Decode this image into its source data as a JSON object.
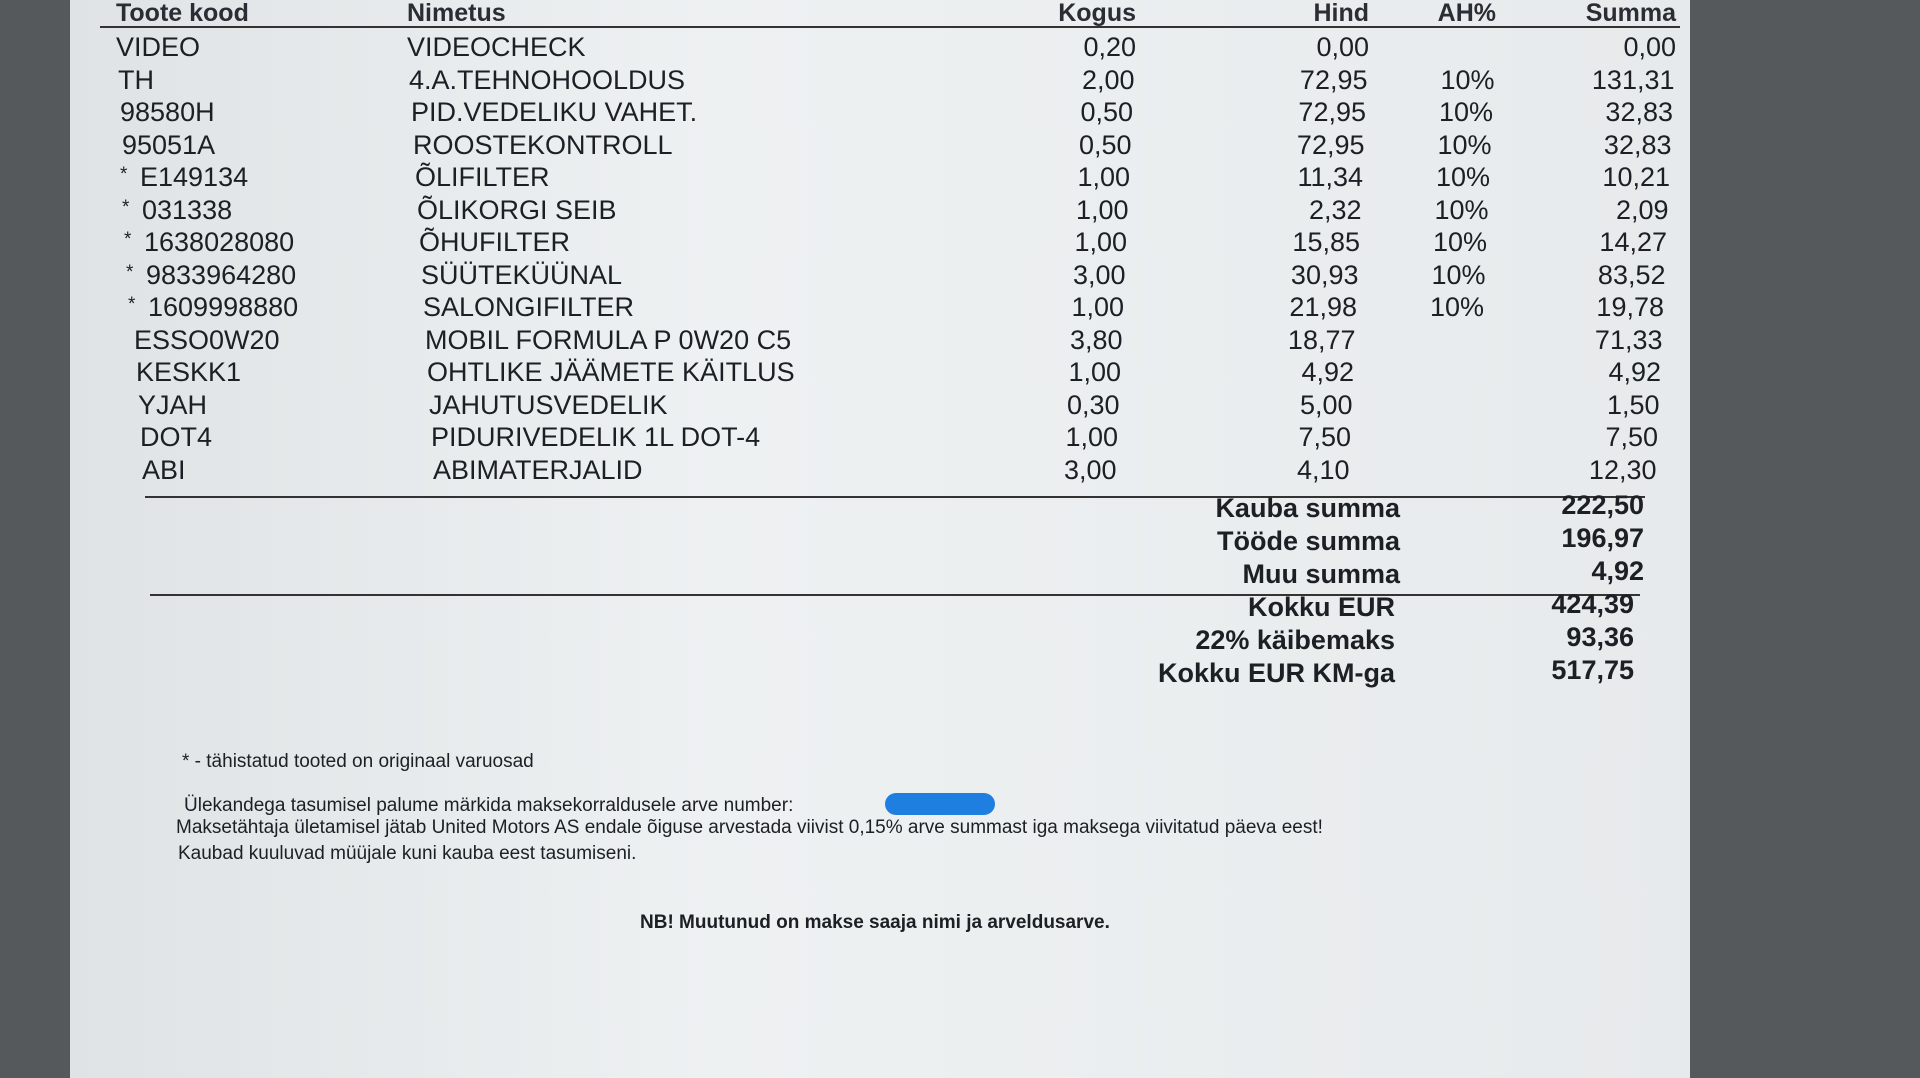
{
  "table": {
    "headers": [
      "Toote kood",
      "Nimetus",
      "Kogus",
      "Hind",
      "AH%",
      "Summa"
    ],
    "rows": [
      {
        "code": "VIDEO",
        "name": "VIDEOCHECK",
        "qty": "0,20",
        "price": "0,00",
        "sum": "0,00"
      },
      {
        "code": "TH",
        "name": "4.A.TEHNOHOOLDUS",
        "qty": "2,00",
        "price": "72,95",
        "discount": "10%",
        "sum": "131,31"
      },
      {
        "code": "98580H",
        "name": "PID.VEDELIKU VAHET.",
        "qty": "0,50",
        "price": "72,95",
        "discount": "10%",
        "sum": "32,83"
      },
      {
        "code": "95051A",
        "name": "ROOSTEKONTROLL",
        "qty": "0,50",
        "price": "72,95",
        "discount": "10%",
        "sum": "32,83"
      },
      {
        "marker": "*",
        "code": "E149134",
        "name": "ÕLIFILTER",
        "qty": "1,00",
        "price": "11,34",
        "discount": "10%",
        "sum": "10,21"
      },
      {
        "marker": "*",
        "code": "031338",
        "name": "ÕLIKORGI SEIB",
        "qty": "1,00",
        "price": "2,32",
        "discount": "10%",
        "sum": "2,09"
      },
      {
        "marker": "*",
        "code": "1638028080",
        "name": "ÕHUFILTER",
        "qty": "1,00",
        "price": "15,85",
        "discount": "10%",
        "sum": "14,27"
      },
      {
        "marker": "*",
        "code": "9833964280",
        "name": "SÜÜTEKÜÜNAL",
        "qty": "3,00",
        "price": "30,93",
        "discount": "10%",
        "sum": "83,52"
      },
      {
        "marker": "*",
        "code": "1609998880",
        "name": "SALONGIFILTER",
        "qty": "1,00",
        "price": "21,98",
        "discount": "10%",
        "sum": "19,78"
      },
      {
        "code": "ESSO0W20",
        "name": "MOBIL FORMULA P 0W20 C5",
        "qty": "3,80",
        "price": "18,77",
        "sum": "71,33"
      },
      {
        "code": "KESKK1",
        "name": "OHTLIKE JÄÄMETE KÄITLUS",
        "qty": "1,00",
        "price": "4,92",
        "sum": "4,92"
      },
      {
        "code": "YJAH",
        "name": "JAHUTUSVEDELIK",
        "qty": "0,30",
        "price": "5,00",
        "sum": "1,50"
      },
      {
        "code": "DOT4",
        "name": "PIDURIVEDELIK 1L DOT-4",
        "qty": "1,00",
        "price": "7,50",
        "sum": "7,50"
      },
      {
        "code": "ABI",
        "name": "ABIMATERJALID",
        "qty": "3,00",
        "price": "4,10",
        "sum": "12,30"
      }
    ]
  },
  "subtotals": [
    {
      "label": "Kauba summa",
      "value": "222,50"
    },
    {
      "label": "Tööde summa",
      "value": "196,97"
    },
    {
      "label": "Muu summa",
      "value": "4,92"
    }
  ],
  "totals": [
    {
      "label": "Kokku EUR",
      "value": "424,39"
    },
    {
      "label": "22% käibemaks",
      "value": "93,36"
    },
    {
      "label": "Kokku EUR KM-ga",
      "value": "517,75"
    }
  ],
  "footnote": "* -  tähistatud tooted on originaal varuosad",
  "payment_note": "Ülekandega tasumisel palume märkida maksekorraldusele arve number:",
  "terms": [
    "Maksetähtaja ületamisel jätab United Motors AS endale õiguse arvestada viivist 0,15% arve summast iga maksega viivitatud päeva eest!",
    "Kaubad kuuluvad müüjale kuni kauba eest tasumiseni."
  ],
  "notice": "NB! Muutunud on makse saaja nimi ja arveldusarve."
}
